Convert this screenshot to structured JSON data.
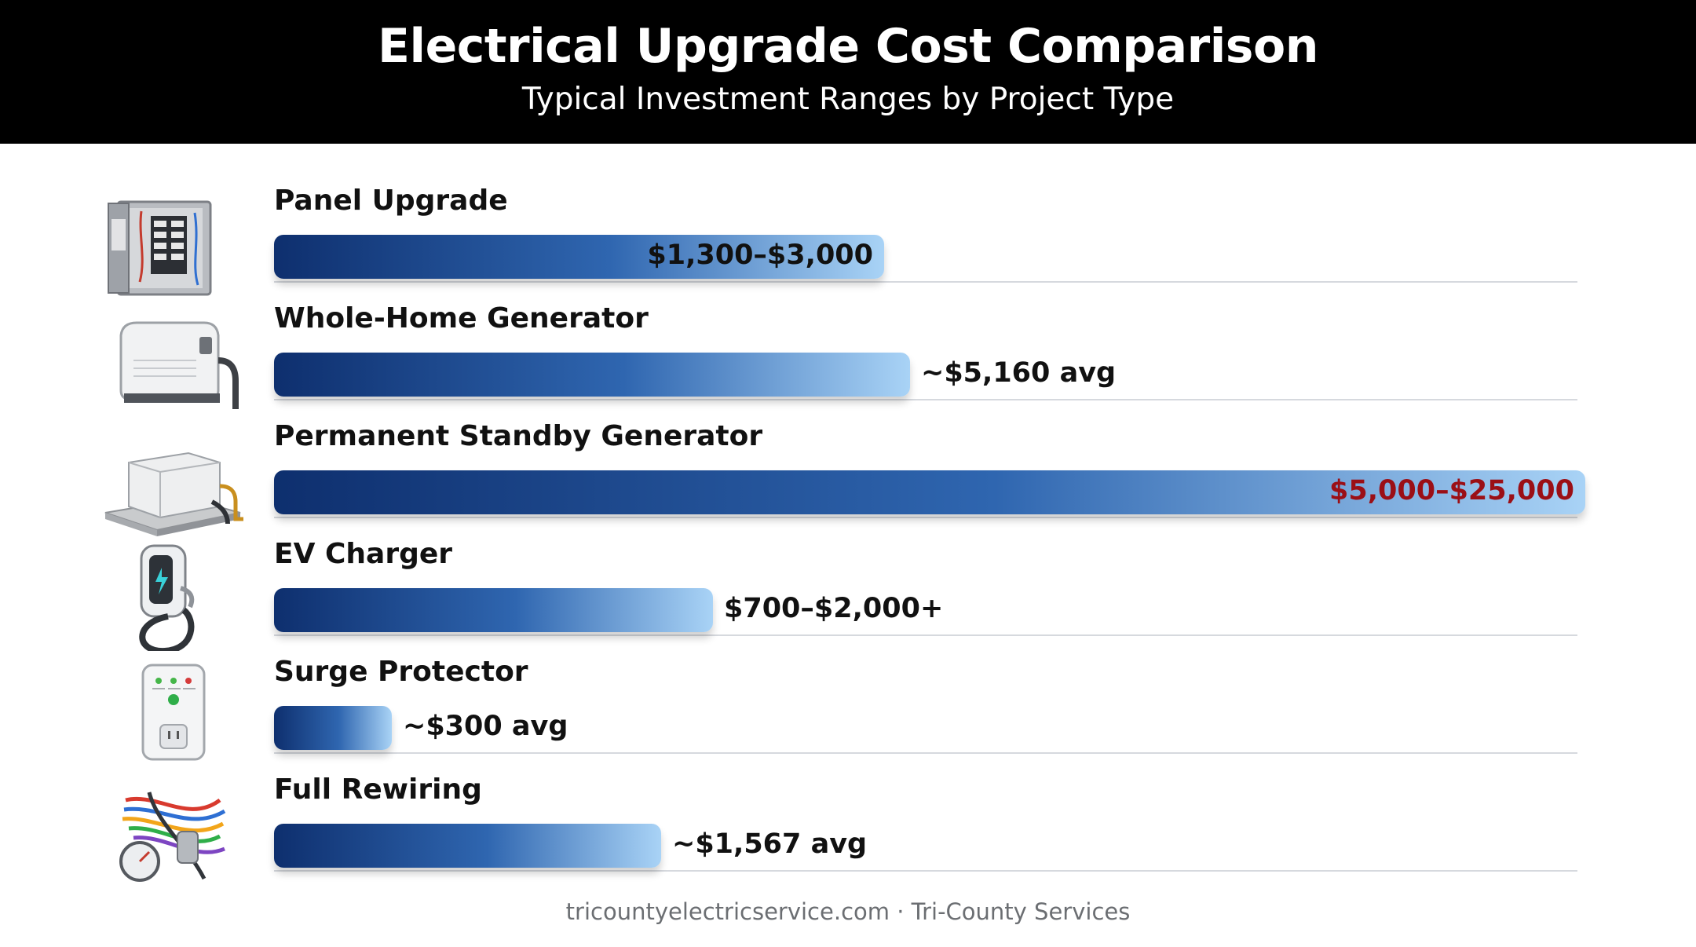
{
  "header": {
    "title": "Electrical Upgrade Cost Comparison",
    "subtitle": "Typical Investment Ranges by Project Type"
  },
  "footer": {
    "text": "tricountyelectricservice.com · Tri-County Services"
  },
  "chart_data": {
    "type": "bar",
    "orientation": "horizontal",
    "title": "Electrical Upgrade Cost Comparison",
    "subtitle": "Typical Investment Ranges by Project Type",
    "categories": [
      "Panel Upgrade",
      "Whole-Home Generator",
      "Permanent Standby Generator",
      "EV Charger",
      "Surge Protector",
      "Full Rewiring"
    ],
    "values": [
      3000,
      5160,
      25000,
      2000,
      300,
      1567
    ],
    "value_labels": [
      "$1,300–$3,000",
      "~$5,160 avg",
      "$5,000–$25,000",
      "$700–$2,000+",
      "~$300 avg",
      "~$1,567 avg"
    ],
    "label_position": [
      "inside",
      "outside",
      "inside",
      "outside",
      "outside",
      "outside"
    ],
    "bar_fraction_of_max": [
      0.465,
      0.485,
      1.0,
      0.335,
      0.09,
      0.295
    ],
    "highlight_index": 2,
    "icons": [
      "electrical-panel-icon",
      "generator-icon",
      "standby-generator-icon",
      "ev-charger-icon",
      "surge-protector-icon",
      "wiring-icon"
    ],
    "colors": {
      "bar_start": "#0e2f6e",
      "bar_mid": "#2f66b0",
      "bar_end": "#a9d3f6",
      "highlight_text": "#9b0f16",
      "header_bg": "#000000"
    },
    "xlabel": "",
    "ylabel": "",
    "grid": false,
    "legend": "none"
  }
}
